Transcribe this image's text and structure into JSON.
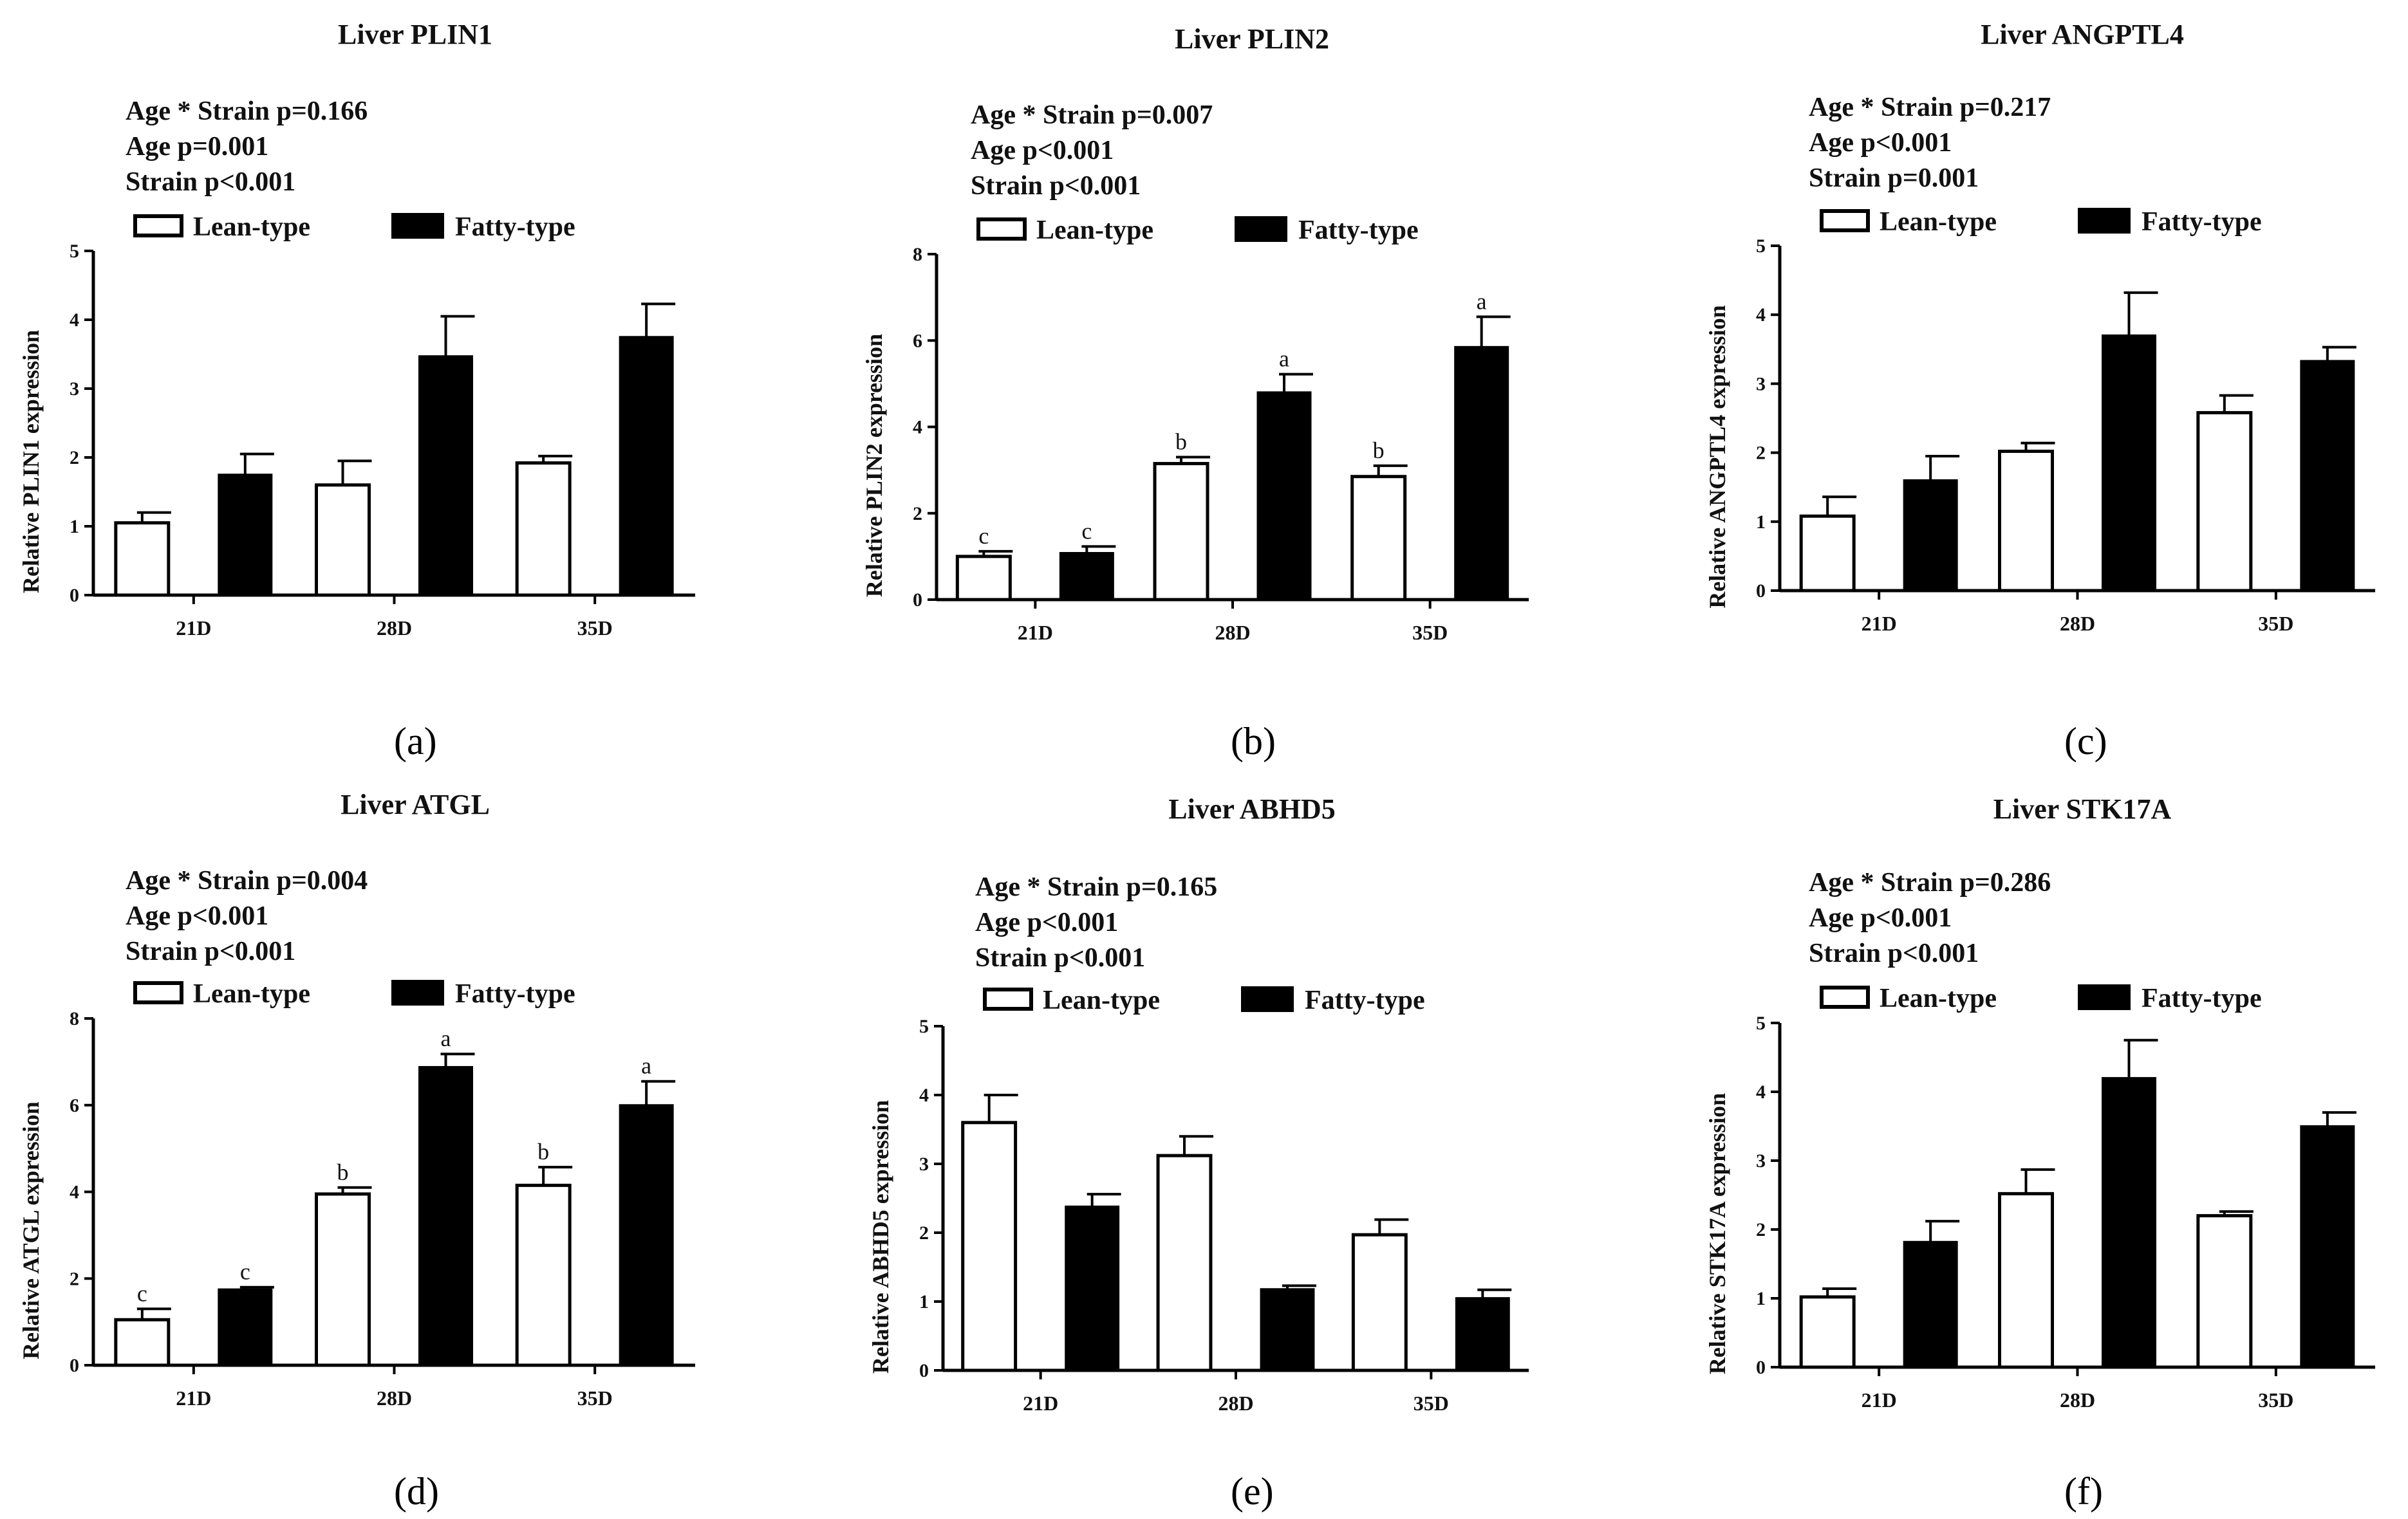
{
  "figure": {
    "legend_labels": [
      "Lean-type",
      "Fatty-type"
    ],
    "colors": {
      "lean_fill": "#ffffff",
      "fatty_fill": "#000000",
      "stroke": "#000000"
    }
  },
  "chart_data": [
    {
      "type": "bar",
      "panel": "(a)",
      "title": "Liver PLIN1",
      "stats": [
        "Age * Strain p=0.166",
        "Age    p=0.001",
        "Strain   p<0.001"
      ],
      "ylabel": "Relative PLIN1 expression",
      "xlabel": "",
      "categories": [
        "21D",
        "28D",
        "35D"
      ],
      "ylim": [
        0,
        5
      ],
      "yticks": [
        0,
        1,
        2,
        3,
        4,
        5
      ],
      "series": [
        {
          "name": "Lean-type",
          "values": [
            1.05,
            1.6,
            1.92
          ],
          "errors": [
            0.15,
            0.35,
            0.1
          ],
          "labels": [
            "",
            "",
            ""
          ]
        },
        {
          "name": "Fatty-type",
          "values": [
            1.75,
            3.47,
            3.75
          ],
          "errors": [
            0.3,
            0.58,
            0.48
          ],
          "labels": [
            "",
            "",
            ""
          ]
        }
      ]
    },
    {
      "type": "bar",
      "panel": "(b)",
      "title": "Liver PLIN2",
      "stats": [
        "Age * Strain p=0.007",
        "Age    p<0.001",
        "Strain   p<0.001"
      ],
      "ylabel": "Relative PLIN2 expression",
      "xlabel": "",
      "categories": [
        "21D",
        "28D",
        "35D"
      ],
      "ylim": [
        0,
        8
      ],
      "yticks": [
        0,
        2,
        4,
        6,
        8
      ],
      "series": [
        {
          "name": "Lean-type",
          "values": [
            1.0,
            3.15,
            2.85
          ],
          "errors": [
            0.12,
            0.15,
            0.25
          ],
          "labels": [
            "c",
            "b",
            "b"
          ]
        },
        {
          "name": "Fatty-type",
          "values": [
            1.08,
            4.8,
            5.85
          ],
          "errors": [
            0.15,
            0.42,
            0.7
          ],
          "labels": [
            "c",
            "a",
            "a"
          ]
        }
      ]
    },
    {
      "type": "bar",
      "panel": "(c)",
      "title": "Liver ANGPTL4",
      "stats": [
        "Age * Strain p=0.217",
        "Age    p<0.001",
        "Strain   p=0.001"
      ],
      "ylabel": "Relative ANGPTL4 expression",
      "xlabel": "",
      "categories": [
        "21D",
        "28D",
        "35D"
      ],
      "ylim": [
        0,
        5
      ],
      "yticks": [
        0,
        1,
        2,
        3,
        4,
        5
      ],
      "series": [
        {
          "name": "Lean-type",
          "values": [
            1.08,
            2.02,
            2.58
          ],
          "errors": [
            0.28,
            0.12,
            0.25
          ],
          "labels": [
            "",
            "",
            ""
          ]
        },
        {
          "name": "Fatty-type",
          "values": [
            1.6,
            3.7,
            3.33
          ],
          "errors": [
            0.35,
            0.62,
            0.2
          ],
          "labels": [
            "",
            "",
            ""
          ]
        }
      ]
    },
    {
      "type": "bar",
      "panel": "(d)",
      "title": "Liver ATGL",
      "stats": [
        "Age * Strain p=0.004",
        "Age    p<0.001",
        "Strain   p<0.001"
      ],
      "ylabel": "Relative ATGL expression",
      "xlabel": "",
      "categories": [
        "21D",
        "28D",
        "35D"
      ],
      "ylim": [
        0,
        8
      ],
      "yticks": [
        0,
        2,
        4,
        6,
        8
      ],
      "series": [
        {
          "name": "Lean-type",
          "values": [
            1.05,
            3.95,
            4.15
          ],
          "errors": [
            0.25,
            0.15,
            0.42
          ],
          "labels": [
            "c",
            "b",
            "b"
          ]
        },
        {
          "name": "Fatty-type",
          "values": [
            1.75,
            6.88,
            6.0
          ],
          "errors": [
            0.05,
            0.3,
            0.55
          ],
          "labels": [
            "c",
            "a",
            "a"
          ]
        }
      ]
    },
    {
      "type": "bar",
      "panel": "(e)",
      "title": "Liver ABHD5",
      "stats": [
        "Age * Strain p=0.165",
        "Age    p<0.001",
        "Strain   p<0.001"
      ],
      "ylabel": "Relative ABHD5 expression",
      "xlabel": "",
      "categories": [
        "21D",
        "28D",
        "35D"
      ],
      "ylim": [
        0,
        5
      ],
      "yticks": [
        0,
        1,
        2,
        3,
        4,
        5
      ],
      "series": [
        {
          "name": "Lean-type",
          "values": [
            3.6,
            3.12,
            1.97
          ],
          "errors": [
            0.4,
            0.28,
            0.22
          ],
          "labels": [
            "",
            "",
            ""
          ]
        },
        {
          "name": "Fatty-type",
          "values": [
            2.38,
            1.18,
            1.05
          ],
          "errors": [
            0.18,
            0.05,
            0.12
          ],
          "labels": [
            "",
            "",
            ""
          ]
        }
      ]
    },
    {
      "type": "bar",
      "panel": "(f)",
      "title": "Liver STK17A",
      "stats": [
        "Age * Strain p=0.286",
        "Age    p<0.001",
        "Strain   p<0.001"
      ],
      "ylabel": "Relative STK17A expression",
      "xlabel": "",
      "categories": [
        "21D",
        "28D",
        "35D"
      ],
      "ylim": [
        0,
        5
      ],
      "yticks": [
        0,
        1,
        2,
        3,
        4,
        5
      ],
      "series": [
        {
          "name": "Lean-type",
          "values": [
            1.02,
            2.52,
            2.2
          ],
          "errors": [
            0.12,
            0.35,
            0.06
          ],
          "labels": [
            "",
            "",
            ""
          ]
        },
        {
          "name": "Fatty-type",
          "values": [
            1.82,
            4.2,
            3.5
          ],
          "errors": [
            0.3,
            0.55,
            0.2
          ],
          "labels": [
            "",
            "",
            ""
          ]
        }
      ]
    }
  ]
}
